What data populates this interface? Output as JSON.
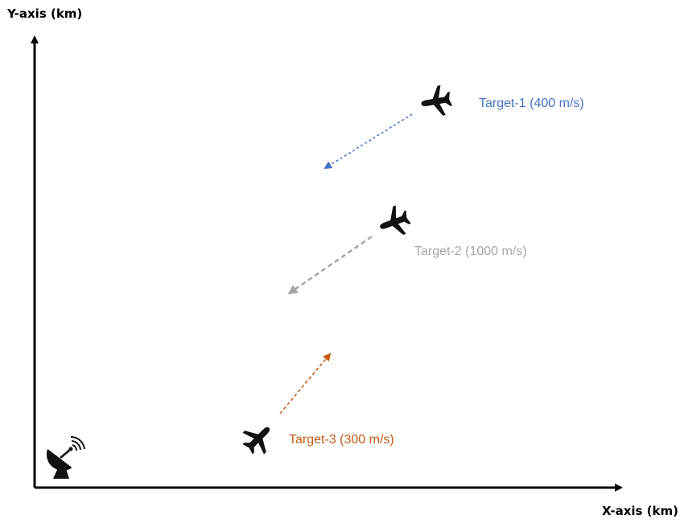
{
  "axes": {
    "y_label": "Y-axis (km)",
    "x_label": "X-axis (km)"
  },
  "radar": {
    "icon": "radar-dish-icon"
  },
  "targets": [
    {
      "label": "Target-1 (400 m/s)",
      "color": "#4472c4",
      "icon": "airplane-icon",
      "heading": "toward lower-left"
    },
    {
      "label": "Target-2 (1000 m/s)",
      "color": "#a6a6a6",
      "icon": "airplane-icon",
      "heading": "toward lower-left"
    },
    {
      "label": "Target-3 (300 m/s)",
      "color": "#c55a11",
      "icon": "airplane-icon",
      "heading": "toward upper-right"
    }
  ]
}
